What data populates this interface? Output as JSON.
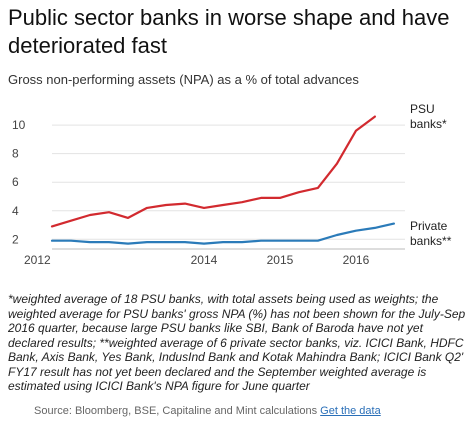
{
  "title": "Public sector banks in worse shape and have deteriorated fast",
  "subtitle": "Gross non-performing assets (NPA) as a % of total advances",
  "chart_data": {
    "type": "line",
    "title": "Public sector banks in worse shape and have deteriorated fast",
    "subtitle": "Gross non-performing assets (NPA) as a % of total advances",
    "x": [
      2012.0,
      2012.25,
      2012.5,
      2012.75,
      2013.0,
      2013.25,
      2013.5,
      2013.75,
      2014.0,
      2014.25,
      2014.5,
      2014.75,
      2015.0,
      2015.25,
      2015.5,
      2015.75,
      2016.0,
      2016.25,
      2016.5
    ],
    "series": [
      {
        "name": "PSU banks*",
        "color": "#d22a2f",
        "values": [
          2.9,
          3.3,
          3.7,
          3.9,
          3.5,
          4.2,
          4.4,
          4.5,
          4.2,
          4.4,
          4.6,
          4.9,
          4.9,
          5.3,
          5.6,
          7.3,
          9.6,
          10.6,
          null
        ]
      },
      {
        "name": "Private banks**",
        "color": "#2b7bb9",
        "values": [
          1.9,
          1.9,
          1.8,
          1.8,
          1.7,
          1.8,
          1.8,
          1.8,
          1.7,
          1.8,
          1.8,
          1.9,
          1.9,
          1.9,
          1.9,
          2.3,
          2.6,
          2.8,
          3.1
        ]
      }
    ],
    "xticks": [
      "2012",
      "2014",
      "2015",
      "2016"
    ],
    "xtick_values": [
      2012,
      2014,
      2015,
      2016
    ],
    "yticks": [
      "2",
      "4",
      "6",
      "8",
      "10"
    ],
    "ytick_values": [
      2,
      4,
      6,
      8,
      10
    ],
    "xlim": [
      2012.0,
      2016.58
    ],
    "ylim": [
      1.6,
      11.2
    ],
    "grid": "horizontal",
    "legend": "inline-right"
  },
  "footnote": "*weighted average of 18 PSU banks, with total assets being used as weights; the weighted average for PSU banks' gross NPA (%) has not been shown for the July-Sep 2016 quarter, because large PSU banks like SBI, Bank of Baroda have not yet declared results; **weighted average of 6 private sector banks, viz. ICICI Bank, HDFC Bank, Axis Bank, Yes Bank, IndusInd Bank and Kotak Mahindra Bank; ICICI Bank Q2' FY17 result has not yet been declared and the September weighted average is estimated using ICICI Bank's NPA figure for June quarter",
  "source_text": "Source: Bloomberg, BSE, Capitaline and Mint calculations",
  "source_link": "Get the data"
}
